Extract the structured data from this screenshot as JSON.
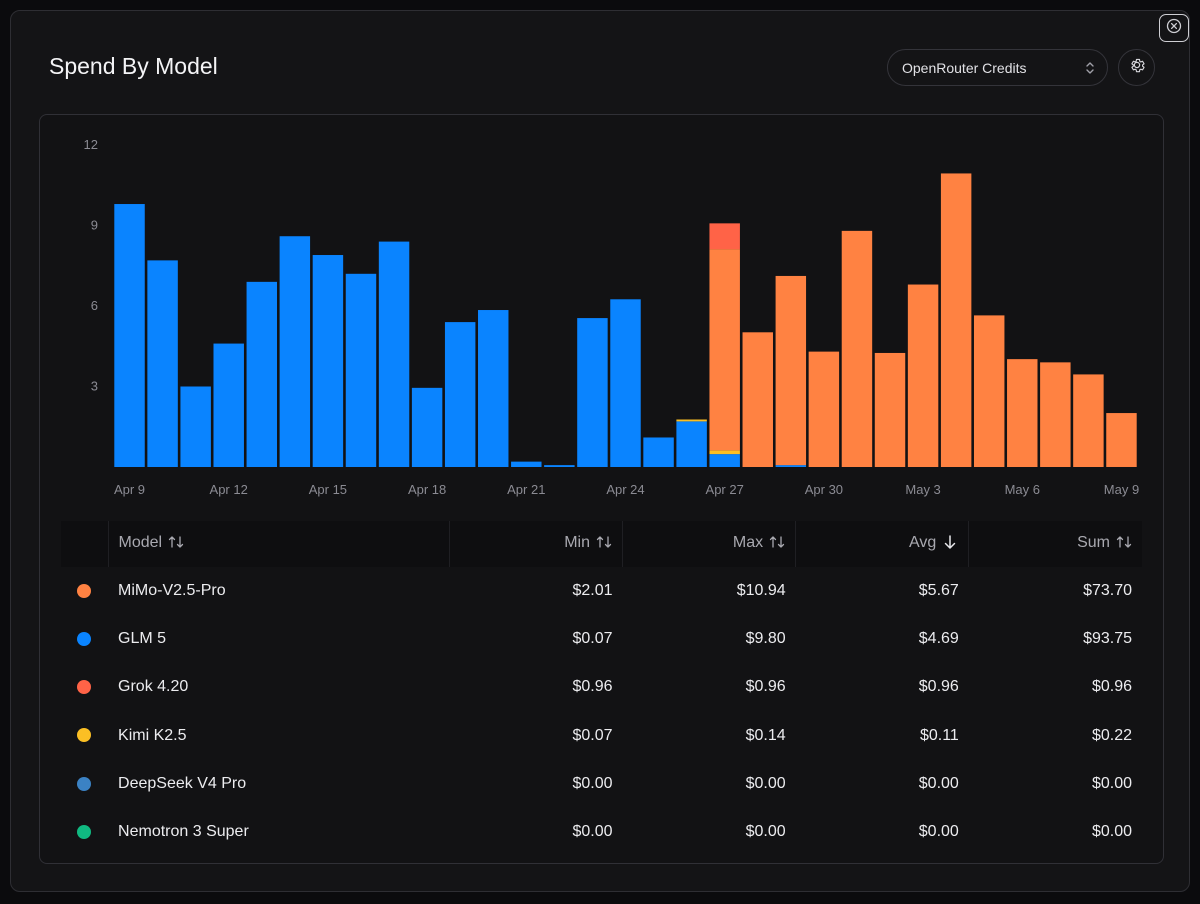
{
  "header": {
    "title": "Spend By Model"
  },
  "controls": {
    "credits_select_value": "OpenRouter Credits"
  },
  "colors": {
    "MiMo-V2.5-Pro": "#ff8242",
    "GLM 5": "#0a84ff",
    "Grok 4.20": "#ff6347",
    "Kimi K2.5": "#fbbf24",
    "DeepSeek V4 Pro": "#3b82c4",
    "Nemotron 3 Super": "#10b981"
  },
  "table": {
    "columns": [
      "Model",
      "Min",
      "Max",
      "Avg",
      "Sum"
    ],
    "sorted_column": "Avg",
    "sort_direction": "desc",
    "rows": [
      {
        "model": "MiMo-V2.5-Pro",
        "color": "#ff8242",
        "min": "$2.01",
        "max": "$10.94",
        "avg": "$5.67",
        "sum": "$73.70"
      },
      {
        "model": "GLM 5",
        "color": "#0a84ff",
        "min": "$0.07",
        "max": "$9.80",
        "avg": "$4.69",
        "sum": "$93.75"
      },
      {
        "model": "Grok 4.20",
        "color": "#ff6347",
        "min": "$0.96",
        "max": "$0.96",
        "avg": "$0.96",
        "sum": "$0.96"
      },
      {
        "model": "Kimi K2.5",
        "color": "#fbbf24",
        "min": "$0.07",
        "max": "$0.14",
        "avg": "$0.11",
        "sum": "$0.22"
      },
      {
        "model": "DeepSeek V4 Pro",
        "color": "#3b82c4",
        "min": "$0.00",
        "max": "$0.00",
        "avg": "$0.00",
        "sum": "$0.00"
      },
      {
        "model": "Nemotron 3 Super",
        "color": "#10b981",
        "min": "$0.00",
        "max": "$0.00",
        "avg": "$0.00",
        "sum": "$0.00"
      }
    ]
  },
  "chart_data": {
    "type": "bar",
    "stacked": true,
    "ylim": [
      0,
      12
    ],
    "yticks": [
      3,
      6,
      9,
      12
    ],
    "grid": false,
    "categories": [
      "Apr 9",
      "Apr 10",
      "Apr 11",
      "Apr 12",
      "Apr 13",
      "Apr 14",
      "Apr 15",
      "Apr 16",
      "Apr 17",
      "Apr 18",
      "Apr 19",
      "Apr 20",
      "Apr 21",
      "Apr 22",
      "Apr 23",
      "Apr 24",
      "Apr 25",
      "Apr 26",
      "Apr 27",
      "Apr 28",
      "Apr 29",
      "Apr 30",
      "May 1",
      "May 2",
      "May 3",
      "May 4",
      "May 5",
      "May 6",
      "May 7",
      "May 8",
      "May 9"
    ],
    "xtick_labels": [
      "Apr 9",
      "Apr 12",
      "Apr 15",
      "Apr 18",
      "Apr 21",
      "Apr 24",
      "Apr 27",
      "Apr 30",
      "May 3",
      "May 6",
      "May 9"
    ],
    "series": [
      {
        "name": "GLM 5",
        "values": [
          9.8,
          7.7,
          3.0,
          4.6,
          6.9,
          8.6,
          7.9,
          7.2,
          8.4,
          2.95,
          5.4,
          5.85,
          0.2,
          0.07,
          5.55,
          6.25,
          1.1,
          1.7,
          0.48,
          0,
          0.07,
          0,
          0,
          0,
          0,
          0,
          0,
          0,
          0,
          0,
          0
        ]
      },
      {
        "name": "Kimi K2.5",
        "values": [
          0,
          0,
          0,
          0,
          0,
          0,
          0,
          0,
          0,
          0,
          0,
          0,
          0,
          0,
          0,
          0,
          0,
          0.07,
          0.14,
          0,
          0,
          0,
          0,
          0,
          0,
          0,
          0,
          0,
          0,
          0,
          0
        ]
      },
      {
        "name": "MiMo-V2.5-Pro",
        "values": [
          0,
          0,
          0,
          0,
          0,
          0,
          0,
          0,
          0,
          0,
          0,
          0,
          0,
          0,
          0,
          0,
          0,
          0,
          7.5,
          5.02,
          7.05,
          4.3,
          8.8,
          4.25,
          6.8,
          10.94,
          5.65,
          4.02,
          3.9,
          3.45,
          2.01
        ]
      },
      {
        "name": "Grok 4.20",
        "values": [
          0,
          0,
          0,
          0,
          0,
          0,
          0,
          0,
          0,
          0,
          0,
          0,
          0,
          0,
          0,
          0,
          0,
          0,
          0.96,
          0,
          0,
          0,
          0,
          0,
          0,
          0,
          0,
          0,
          0,
          0,
          0
        ]
      }
    ]
  }
}
